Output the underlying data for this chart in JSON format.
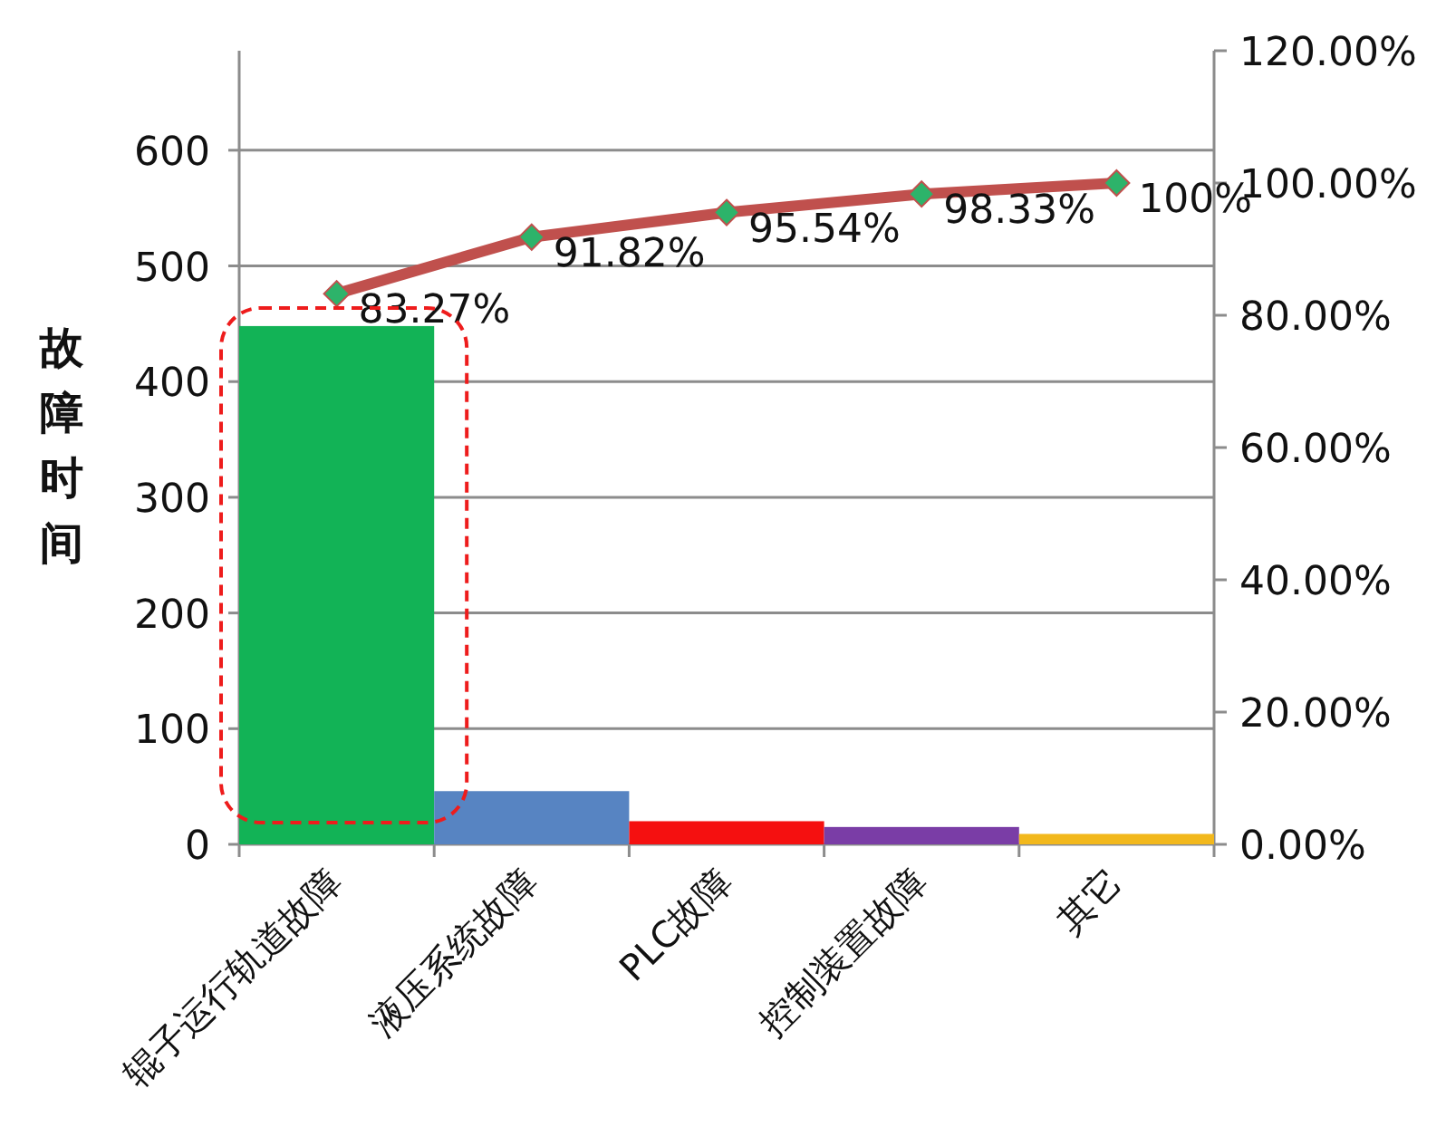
{
  "chart_data": {
    "type": "bar",
    "ylabel": "故障时间",
    "categories": [
      "辊子运行轨道故障",
      "液压系统故障",
      "PLC故障",
      "控制装置故障",
      "其它"
    ],
    "series": [
      {
        "values": [
          448,
          46,
          20,
          15,
          9
        ],
        "colors": [
          "#12b356",
          "#5784c2",
          "#f51010",
          "#7a3da6",
          "#f2b81c"
        ]
      },
      {
        "type": "line",
        "axis": "y2",
        "color": "#c0504d",
        "marker": "diamond",
        "values": [
          83.27,
          91.82,
          95.54,
          98.33,
          100
        ],
        "value_labels": [
          "83.27%",
          "91.82%",
          "95.54%",
          "98.33%",
          "100%"
        ]
      }
    ],
    "ylim": [
      0,
      686
    ],
    "yticks": [
      0,
      100,
      200,
      300,
      400,
      500,
      600
    ],
    "y2lim": [
      0,
      120
    ],
    "y2ticks": [
      {
        "value": 0,
        "label": "0.00%"
      },
      {
        "value": 20,
        "label": "20.00%"
      },
      {
        "value": 40,
        "label": "40.00%"
      },
      {
        "value": 60,
        "label": "60.00%"
      },
      {
        "value": 80,
        "label": "80.00%"
      },
      {
        "value": 100,
        "label": "100.00%"
      },
      {
        "value": 120,
        "label": "120.00%"
      }
    ],
    "grid": "y"
  }
}
